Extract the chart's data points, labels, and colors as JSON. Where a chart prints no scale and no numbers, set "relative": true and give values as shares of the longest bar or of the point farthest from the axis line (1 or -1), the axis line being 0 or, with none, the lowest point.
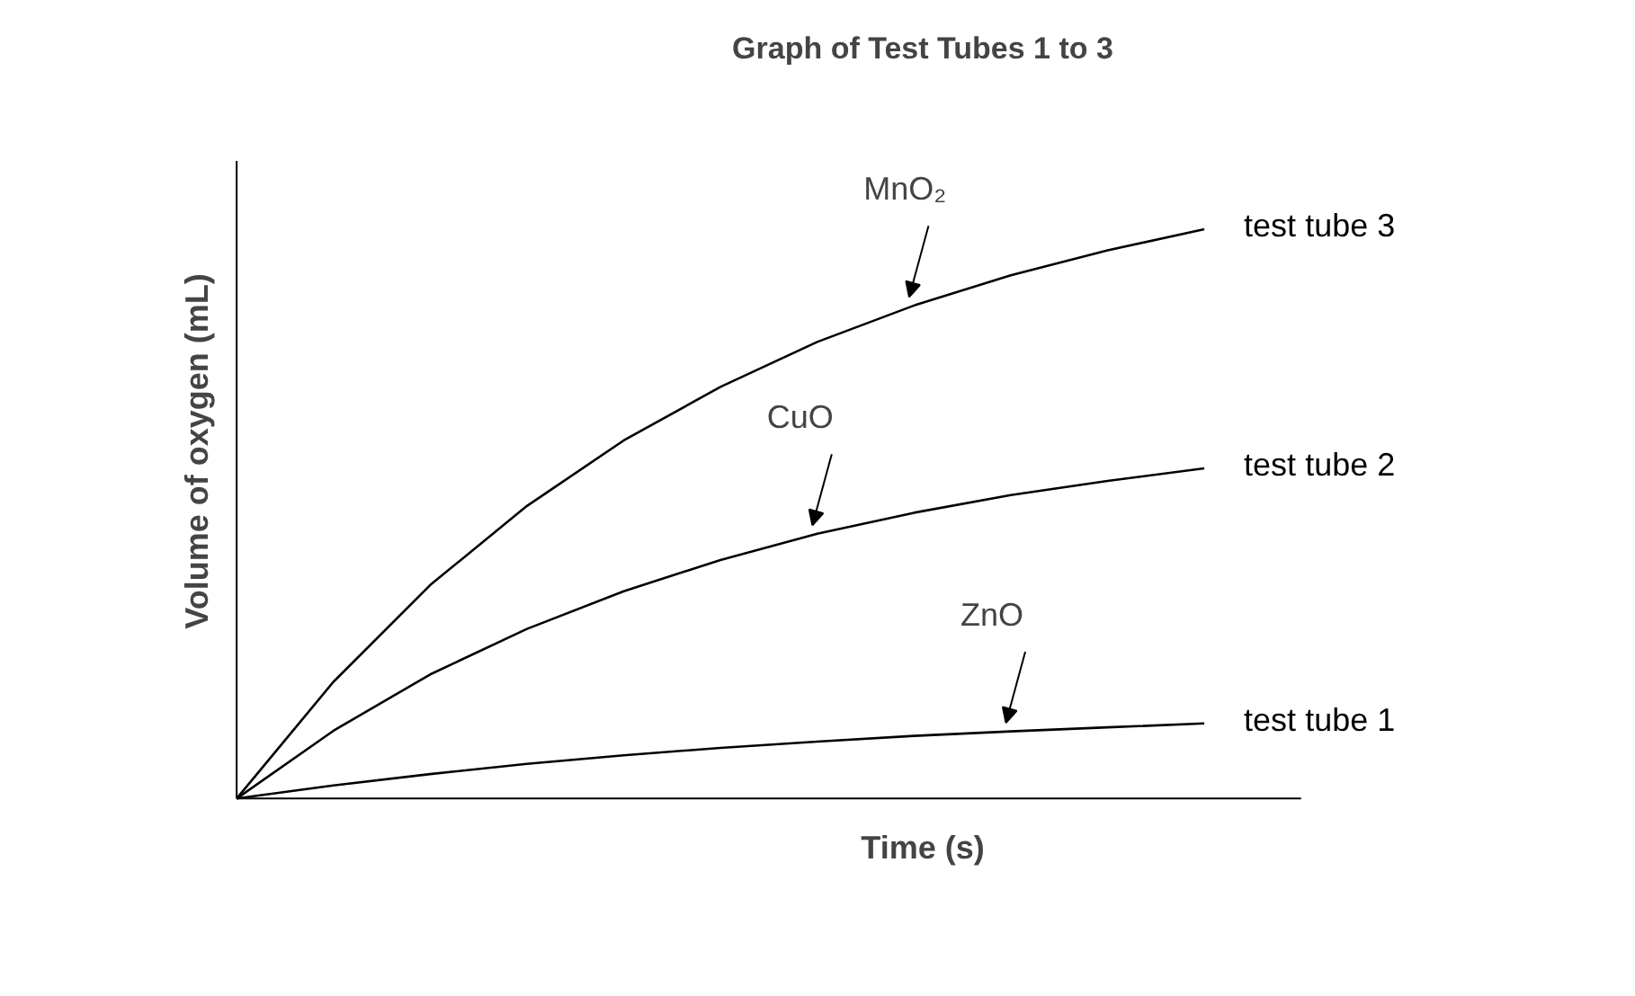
{
  "chart_data": {
    "type": "line",
    "title": "Graph of Test Tubes 1 to 3",
    "xlabel": "Time (s)",
    "ylabel": "Volume of oxygen (mL)",
    "relative": true,
    "marker": "none",
    "line_style": "solid",
    "grid": false,
    "categories": [
      null,
      null,
      null,
      null,
      null,
      null,
      null,
      null,
      null,
      null,
      null
    ],
    "series": [
      {
        "name": "test tube 3",
        "color": "#000000",
        "values": [
          0,
          0.205,
          0.375,
          0.514,
          0.629,
          0.723,
          0.802,
          0.866,
          0.919,
          0.963,
          1.0
        ]
      },
      {
        "name": "test tube 2",
        "color": "#000000",
        "values": [
          0,
          0.119,
          0.218,
          0.298,
          0.364,
          0.419,
          0.465,
          0.502,
          0.533,
          0.558,
          0.58
        ]
      },
      {
        "name": "test tube 1",
        "color": "#000000",
        "values": [
          0,
          0.023,
          0.043,
          0.061,
          0.076,
          0.089,
          0.1,
          0.11,
          0.118,
          0.125,
          0.132
        ]
      }
    ],
    "annotations": [
      "MnO₂",
      "CuO",
      "ZnO"
    ]
  }
}
